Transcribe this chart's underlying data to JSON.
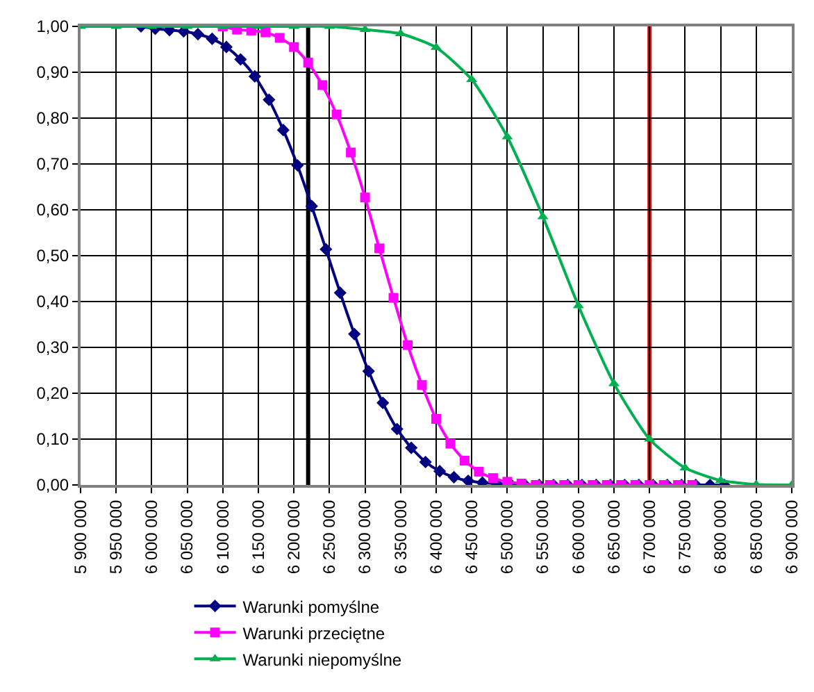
{
  "chart_data": {
    "type": "line",
    "series": [
      {
        "name": "Warunki pomyślne",
        "color": "#000080",
        "marker": "diamond",
        "x": [
          5985000,
          6005000,
          6025000,
          6045000,
          6065000,
          6085000,
          6105000,
          6125000,
          6145000,
          6165000,
          6185000,
          6205000,
          6225000,
          6245000,
          6265000,
          6285000,
          6305000,
          6325000,
          6345000,
          6365000,
          6385000,
          6405000,
          6425000,
          6445000,
          6465000,
          6485000,
          6505000,
          6525000,
          6545000,
          6565000,
          6585000,
          6605000,
          6625000,
          6645000,
          6665000,
          6685000,
          6705000,
          6725000,
          6745000,
          6765000,
          6785000,
          6805000
        ],
        "values": [
          1.0,
          0.995,
          0.992,
          0.989,
          0.983,
          0.973,
          0.955,
          0.928,
          0.891,
          0.84,
          0.774,
          0.697,
          0.608,
          0.514,
          0.419,
          0.329,
          0.248,
          0.179,
          0.122,
          0.081,
          0.05,
          0.03,
          0.017,
          0.009,
          0.005,
          0.003,
          0.001,
          0,
          0,
          0,
          0,
          0,
          0,
          0,
          0,
          0,
          0,
          0,
          0,
          0,
          0,
          0
        ]
      },
      {
        "name": "Warunki przeciętne",
        "color": "#ff00ff",
        "marker": "square",
        "x": [
          6100000,
          6120000,
          6140000,
          6160000,
          6180000,
          6200000,
          6220000,
          6240000,
          6260000,
          6280000,
          6300000,
          6320000,
          6340000,
          6360000,
          6380000,
          6400000,
          6420000,
          6440000,
          6460000,
          6480000,
          6500000,
          6520000,
          6540000,
          6560000,
          6580000,
          6600000,
          6620000,
          6640000,
          6660000,
          6680000,
          6700000,
          6720000,
          6740000,
          6760000
        ],
        "values": [
          1.0,
          0.993,
          0.991,
          0.987,
          0.975,
          0.955,
          0.921,
          0.872,
          0.808,
          0.725,
          0.627,
          0.516,
          0.408,
          0.305,
          0.218,
          0.144,
          0.09,
          0.053,
          0.029,
          0.015,
          0.007,
          0.003,
          0,
          0,
          0,
          0,
          0,
          0,
          0,
          0,
          0,
          0,
          0,
          0
        ]
      },
      {
        "name": "Warunki niepomyślne",
        "color": "#00b050",
        "marker": "triangle",
        "x": [
          5900000,
          5950000,
          6000000,
          6050000,
          6100000,
          6150000,
          6200000,
          6250000,
          6300000,
          6350000,
          6400000,
          6450000,
          6500000,
          6550000,
          6600000,
          6650000,
          6700000,
          6750000,
          6800000,
          6850000,
          6900000
        ],
        "values": [
          1.0,
          1.0,
          1.0,
          1.0,
          1.0,
          1.0,
          1.0,
          1.0,
          0.993,
          0.984,
          0.954,
          0.884,
          0.759,
          0.585,
          0.391,
          0.221,
          0.1,
          0.037,
          0.01,
          0.001,
          0
        ]
      }
    ],
    "ref_lines": [
      {
        "axis": "x",
        "value": 6220000,
        "label": null,
        "color": "#000000"
      },
      {
        "axis": "x",
        "value": 6700000,
        "label": null,
        "color": "#ff0000"
      }
    ],
    "xlim": [
      5900000,
      6900000
    ],
    "xticks": [
      {
        "value": 5900000,
        "label": "5 900 000"
      },
      {
        "value": 5950000,
        "label": "5 950 000"
      },
      {
        "value": 6000000,
        "label": "6 000 000"
      },
      {
        "value": 6050000,
        "label": "6 050 000"
      },
      {
        "value": 6100000,
        "label": "6 100 000"
      },
      {
        "value": 6150000,
        "label": "6 150 000"
      },
      {
        "value": 6200000,
        "label": "6 200 000"
      },
      {
        "value": 6250000,
        "label": "6 250 000"
      },
      {
        "value": 6300000,
        "label": "6 300 000"
      },
      {
        "value": 6350000,
        "label": "6 350 000"
      },
      {
        "value": 6400000,
        "label": "6 400 000"
      },
      {
        "value": 6450000,
        "label": "6 450 000"
      },
      {
        "value": 6500000,
        "label": "6 500 000"
      },
      {
        "value": 6550000,
        "label": "6 550 000"
      },
      {
        "value": 6600000,
        "label": "6 600 000"
      },
      {
        "value": 6650000,
        "label": "6 650 000"
      },
      {
        "value": 6700000,
        "label": "6 700 000"
      },
      {
        "value": 6750000,
        "label": "6 750 000"
      },
      {
        "value": 6800000,
        "label": "6 800 000"
      },
      {
        "value": 6850000,
        "label": "6 850 000"
      },
      {
        "value": 6900000,
        "label": "6 900 000"
      }
    ],
    "ylim": [
      0,
      1
    ],
    "yticks": [
      {
        "value": 0,
        "label": "0,00"
      },
      {
        "value": 0.1,
        "label": "0,10"
      },
      {
        "value": 0.2,
        "label": "0,20"
      },
      {
        "value": 0.3,
        "label": "0,30"
      },
      {
        "value": 0.4,
        "label": "0,40"
      },
      {
        "value": 0.5,
        "label": "0,50"
      },
      {
        "value": 0.6,
        "label": "0,60"
      },
      {
        "value": 0.7,
        "label": "0,70"
      },
      {
        "value": 0.8,
        "label": "0,80"
      },
      {
        "value": 0.9,
        "label": "0,90"
      },
      {
        "value": 1,
        "label": "1,00"
      }
    ],
    "grid": true,
    "legend": "bottom",
    "line_style": "solid"
  }
}
